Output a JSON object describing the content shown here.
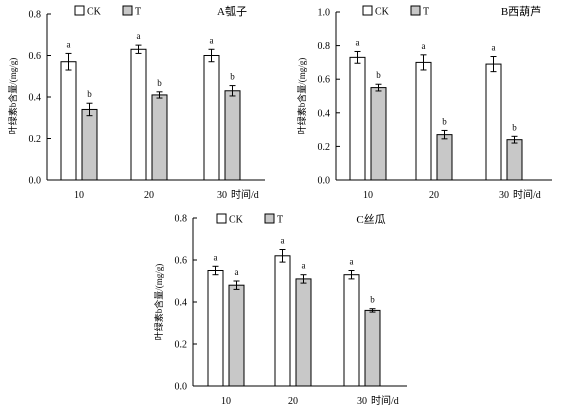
{
  "chart_data": [
    {
      "type": "bar",
      "title": "A瓠子",
      "ylabel": "叶绿素b含量/(mg/g)",
      "xlabel": "时间/d",
      "categories": [
        "10",
        "20",
        "30"
      ],
      "ylim": [
        0,
        0.8
      ],
      "yticks": [
        "0.0",
        "0.2",
        "0.4",
        "0.6",
        "0.8"
      ],
      "series": [
        {
          "name": "CK",
          "values": [
            0.57,
            0.63,
            0.6
          ],
          "errors": [
            0.04,
            0.02,
            0.03
          ],
          "labels": [
            "a",
            "a",
            "a"
          ],
          "color": "#ffffff"
        },
        {
          "name": "T",
          "values": [
            0.34,
            0.41,
            0.43
          ],
          "errors": [
            0.03,
            0.015,
            0.025
          ],
          "labels": [
            "b",
            "b",
            "b"
          ],
          "color": "#c8c8c8"
        }
      ],
      "legend": "top-left"
    },
    {
      "type": "bar",
      "title": "B西葫芦",
      "ylabel": "叶绿素b含量/(mg/g)",
      "xlabel": "时间/d",
      "categories": [
        "10",
        "20",
        "30"
      ],
      "ylim": [
        0,
        1.0
      ],
      "yticks": [
        "0.0",
        "0.2",
        "0.4",
        "0.6",
        "0.8",
        "1.0"
      ],
      "series": [
        {
          "name": "CK",
          "values": [
            0.73,
            0.7,
            0.69
          ],
          "errors": [
            0.035,
            0.045,
            0.045
          ],
          "labels": [
            "a",
            "a",
            "a"
          ],
          "color": "#ffffff"
        },
        {
          "name": "T",
          "values": [
            0.55,
            0.27,
            0.24
          ],
          "errors": [
            0.02,
            0.025,
            0.02
          ],
          "labels": [
            "b",
            "b",
            "b"
          ],
          "color": "#c8c8c8"
        }
      ],
      "legend": "top-left"
    },
    {
      "type": "bar",
      "title": "C丝瓜",
      "ylabel": "叶绿素b含量/(mg/g)",
      "xlabel": "时间/d",
      "categories": [
        "10",
        "20",
        "30"
      ],
      "ylim": [
        0,
        0.8
      ],
      "yticks": [
        "0.0",
        "0.2",
        "0.4",
        "0.6",
        "0.8"
      ],
      "series": [
        {
          "name": "CK",
          "values": [
            0.55,
            0.62,
            0.53
          ],
          "errors": [
            0.02,
            0.03,
            0.02
          ],
          "labels": [
            "a",
            "a",
            "a"
          ],
          "color": "#ffffff"
        },
        {
          "name": "T",
          "values": [
            0.48,
            0.51,
            0.36
          ],
          "errors": [
            0.02,
            0.02,
            0.008
          ],
          "labels": [
            "a",
            "a",
            "b"
          ],
          "color": "#c8c8c8"
        }
      ],
      "legend": "top-left"
    }
  ]
}
